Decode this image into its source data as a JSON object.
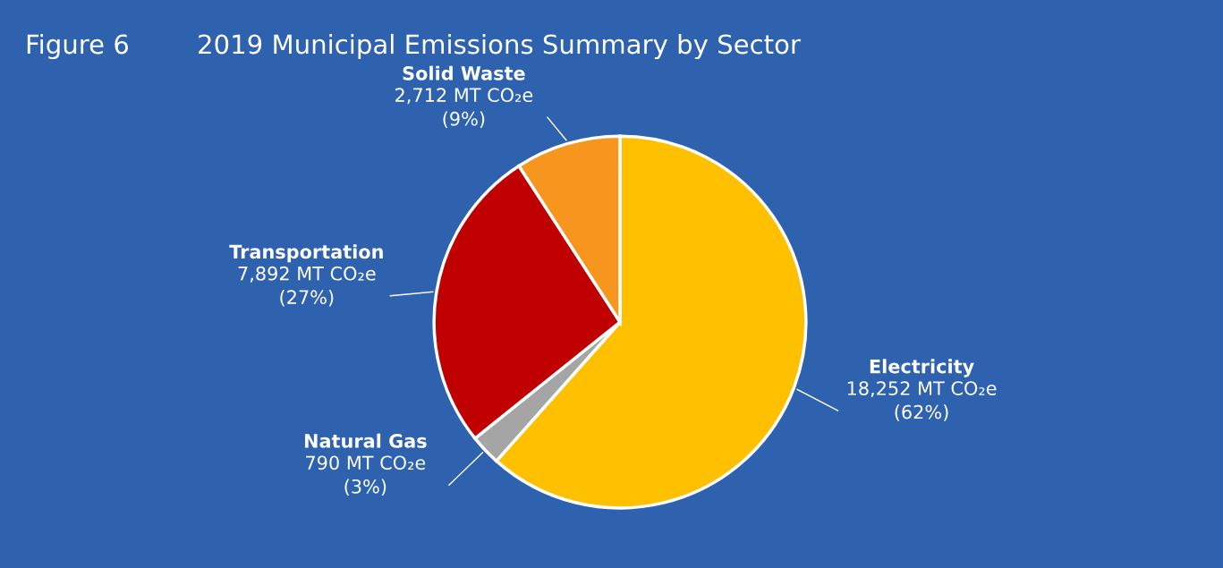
{
  "chart_data": {
    "type": "pie",
    "title": "2019 Municipal Emissions Summary by Sector",
    "annotations": [
      "Figure 6"
    ],
    "categories": [
      "Electricity",
      "Natural Gas",
      "Transportation",
      "Solid Waste"
    ],
    "values": [
      18252,
      790,
      7892,
      2712
    ],
    "colors": [
      "#ffc000",
      "#a5a5a5",
      "#c00000",
      "#f7961e"
    ],
    "value_labels": [
      "18,252 MT CO₂e\n(62%)",
      "790 MT CO₂e\n(3%)",
      "7,892 MT CO₂e\n(27%)",
      "2,712 MT CO₂e\n(9%)"
    ],
    "legend": false
  }
}
